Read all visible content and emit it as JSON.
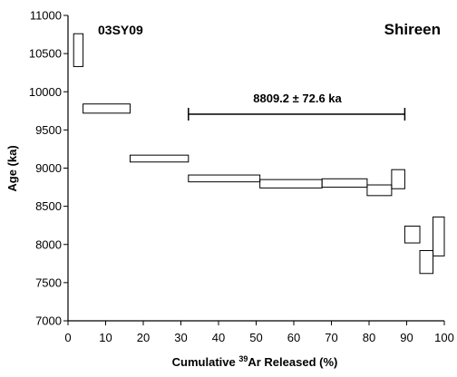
{
  "chart_data": {
    "type": "age-spectrum",
    "xlabel_prefix": "Cumulative ",
    "xlabel_sup": "39",
    "xlabel_suffix": "Ar Released (%)",
    "ylabel": "Age (ka)",
    "xlim": [
      0,
      100
    ],
    "ylim": [
      7000,
      11000
    ],
    "xticks": [
      0,
      10,
      20,
      30,
      40,
      50,
      60,
      70,
      80,
      90,
      100
    ],
    "yticks": [
      7000,
      7500,
      8000,
      8500,
      9000,
      9500,
      10000,
      10500,
      11000
    ],
    "grid": false,
    "sample_label": "03SY09",
    "site_label": "Shireen",
    "plateau": {
      "label": "8809.2 ± 72.6 ka",
      "x_start": 32,
      "x_end": 89.5,
      "age": 8809.2,
      "error": 72.6
    },
    "steps": [
      {
        "x0": 1.5,
        "x1": 4,
        "y_low": 10330,
        "y_high": 10760
      },
      {
        "x0": 4,
        "x1": 16.5,
        "y_low": 9720,
        "y_high": 9840
      },
      {
        "x0": 16.5,
        "x1": 32,
        "y_low": 9080,
        "y_high": 9170
      },
      {
        "x0": 32,
        "x1": 51,
        "y_low": 8820,
        "y_high": 8910
      },
      {
        "x0": 51,
        "x1": 67.5,
        "y_low": 8740,
        "y_high": 8850
      },
      {
        "x0": 67.5,
        "x1": 79.5,
        "y_low": 8750,
        "y_high": 8860
      },
      {
        "x0": 79.5,
        "x1": 86,
        "y_low": 8640,
        "y_high": 8780
      },
      {
        "x0": 86,
        "x1": 89.5,
        "y_low": 8730,
        "y_high": 8980
      },
      {
        "x0": 89.5,
        "x1": 93.5,
        "y_low": 8020,
        "y_high": 8240
      },
      {
        "x0": 93.5,
        "x1": 97,
        "y_low": 7620,
        "y_high": 7920
      },
      {
        "x0": 97,
        "x1": 100,
        "y_low": 7850,
        "y_high": 8360
      }
    ]
  }
}
